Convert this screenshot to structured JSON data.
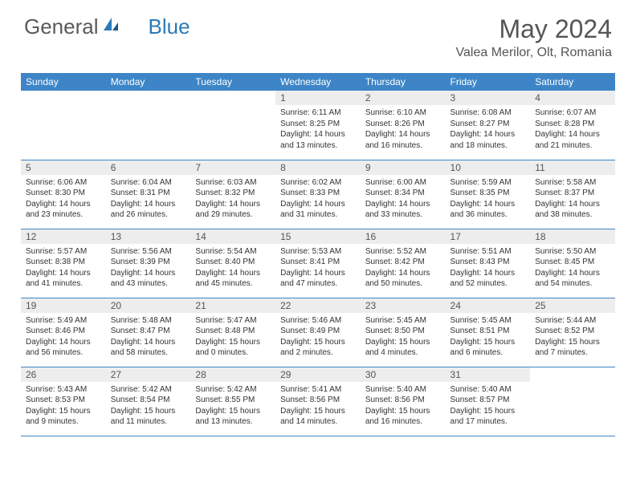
{
  "brand": {
    "name_a": "General",
    "name_b": "Blue"
  },
  "title": "May 2024",
  "location": "Valea Merilor, Olt, Romania",
  "colors": {
    "header_bg": "#3d85c6",
    "header_text": "#ffffff",
    "daynum_bg": "#ededed",
    "rule": "#3d85c6",
    "brand_gray": "#5a5a5a",
    "brand_blue": "#2a7ab8"
  },
  "day_headers": [
    "Sunday",
    "Monday",
    "Tuesday",
    "Wednesday",
    "Thursday",
    "Friday",
    "Saturday"
  ],
  "weeks": [
    [
      {
        "n": "",
        "sr": "",
        "ss": "",
        "dl": ""
      },
      {
        "n": "",
        "sr": "",
        "ss": "",
        "dl": ""
      },
      {
        "n": "",
        "sr": "",
        "ss": "",
        "dl": ""
      },
      {
        "n": "1",
        "sr": "6:11 AM",
        "ss": "8:25 PM",
        "dl": "14 hours and 13 minutes."
      },
      {
        "n": "2",
        "sr": "6:10 AM",
        "ss": "8:26 PM",
        "dl": "14 hours and 16 minutes."
      },
      {
        "n": "3",
        "sr": "6:08 AM",
        "ss": "8:27 PM",
        "dl": "14 hours and 18 minutes."
      },
      {
        "n": "4",
        "sr": "6:07 AM",
        "ss": "8:28 PM",
        "dl": "14 hours and 21 minutes."
      }
    ],
    [
      {
        "n": "5",
        "sr": "6:06 AM",
        "ss": "8:30 PM",
        "dl": "14 hours and 23 minutes."
      },
      {
        "n": "6",
        "sr": "6:04 AM",
        "ss": "8:31 PM",
        "dl": "14 hours and 26 minutes."
      },
      {
        "n": "7",
        "sr": "6:03 AM",
        "ss": "8:32 PM",
        "dl": "14 hours and 29 minutes."
      },
      {
        "n": "8",
        "sr": "6:02 AM",
        "ss": "8:33 PM",
        "dl": "14 hours and 31 minutes."
      },
      {
        "n": "9",
        "sr": "6:00 AM",
        "ss": "8:34 PM",
        "dl": "14 hours and 33 minutes."
      },
      {
        "n": "10",
        "sr": "5:59 AM",
        "ss": "8:35 PM",
        "dl": "14 hours and 36 minutes."
      },
      {
        "n": "11",
        "sr": "5:58 AM",
        "ss": "8:37 PM",
        "dl": "14 hours and 38 minutes."
      }
    ],
    [
      {
        "n": "12",
        "sr": "5:57 AM",
        "ss": "8:38 PM",
        "dl": "14 hours and 41 minutes."
      },
      {
        "n": "13",
        "sr": "5:56 AM",
        "ss": "8:39 PM",
        "dl": "14 hours and 43 minutes."
      },
      {
        "n": "14",
        "sr": "5:54 AM",
        "ss": "8:40 PM",
        "dl": "14 hours and 45 minutes."
      },
      {
        "n": "15",
        "sr": "5:53 AM",
        "ss": "8:41 PM",
        "dl": "14 hours and 47 minutes."
      },
      {
        "n": "16",
        "sr": "5:52 AM",
        "ss": "8:42 PM",
        "dl": "14 hours and 50 minutes."
      },
      {
        "n": "17",
        "sr": "5:51 AM",
        "ss": "8:43 PM",
        "dl": "14 hours and 52 minutes."
      },
      {
        "n": "18",
        "sr": "5:50 AM",
        "ss": "8:45 PM",
        "dl": "14 hours and 54 minutes."
      }
    ],
    [
      {
        "n": "19",
        "sr": "5:49 AM",
        "ss": "8:46 PM",
        "dl": "14 hours and 56 minutes."
      },
      {
        "n": "20",
        "sr": "5:48 AM",
        "ss": "8:47 PM",
        "dl": "14 hours and 58 minutes."
      },
      {
        "n": "21",
        "sr": "5:47 AM",
        "ss": "8:48 PM",
        "dl": "15 hours and 0 minutes."
      },
      {
        "n": "22",
        "sr": "5:46 AM",
        "ss": "8:49 PM",
        "dl": "15 hours and 2 minutes."
      },
      {
        "n": "23",
        "sr": "5:45 AM",
        "ss": "8:50 PM",
        "dl": "15 hours and 4 minutes."
      },
      {
        "n": "24",
        "sr": "5:45 AM",
        "ss": "8:51 PM",
        "dl": "15 hours and 6 minutes."
      },
      {
        "n": "25",
        "sr": "5:44 AM",
        "ss": "8:52 PM",
        "dl": "15 hours and 7 minutes."
      }
    ],
    [
      {
        "n": "26",
        "sr": "5:43 AM",
        "ss": "8:53 PM",
        "dl": "15 hours and 9 minutes."
      },
      {
        "n": "27",
        "sr": "5:42 AM",
        "ss": "8:54 PM",
        "dl": "15 hours and 11 minutes."
      },
      {
        "n": "28",
        "sr": "5:42 AM",
        "ss": "8:55 PM",
        "dl": "15 hours and 13 minutes."
      },
      {
        "n": "29",
        "sr": "5:41 AM",
        "ss": "8:56 PM",
        "dl": "15 hours and 14 minutes."
      },
      {
        "n": "30",
        "sr": "5:40 AM",
        "ss": "8:56 PM",
        "dl": "15 hours and 16 minutes."
      },
      {
        "n": "31",
        "sr": "5:40 AM",
        "ss": "8:57 PM",
        "dl": "15 hours and 17 minutes."
      },
      {
        "n": "",
        "sr": "",
        "ss": "",
        "dl": ""
      }
    ]
  ],
  "labels": {
    "sunrise": "Sunrise:",
    "sunset": "Sunset:",
    "daylight": "Daylight:"
  }
}
